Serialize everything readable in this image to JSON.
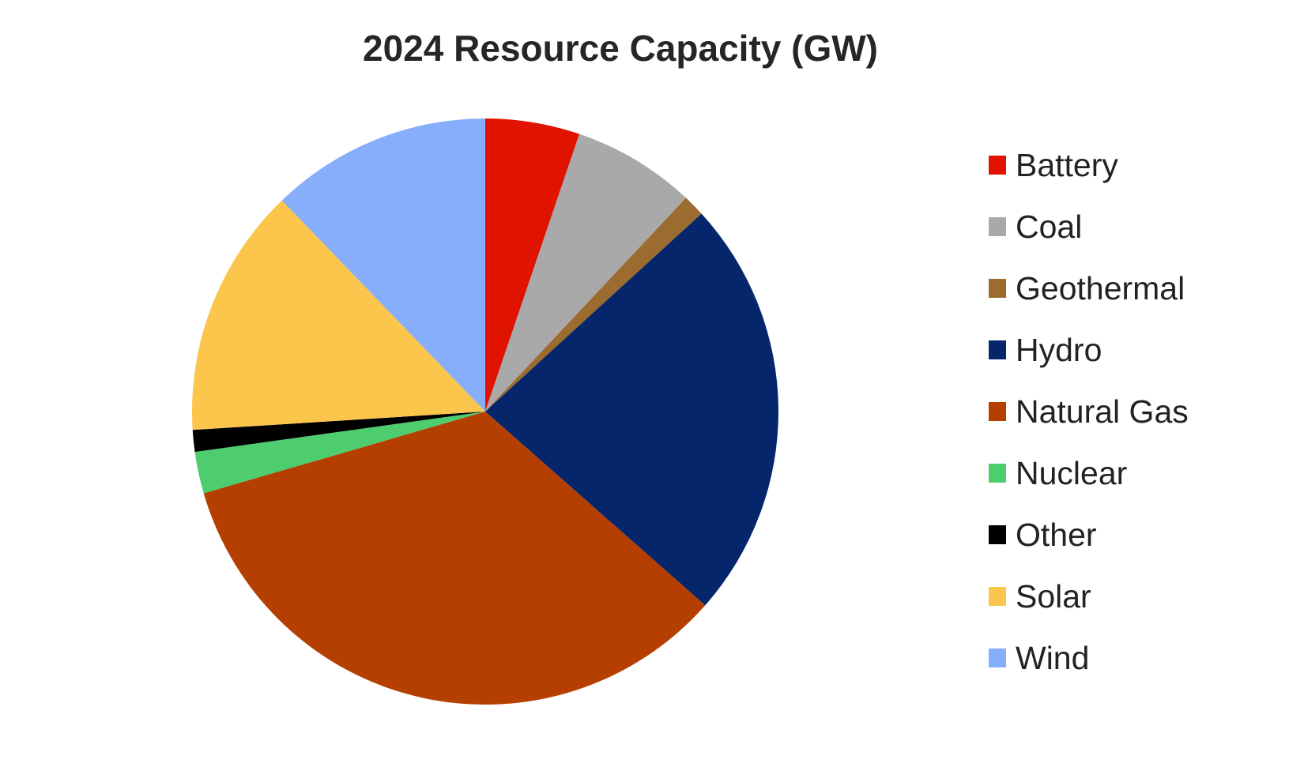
{
  "chart_data": {
    "type": "pie",
    "title": "2024 Resource Capacity (GW)",
    "legend_position": "right",
    "start_angle_deg": 0,
    "direction": "clockwise",
    "categories": [
      "Battery",
      "Coal",
      "Geothermal",
      "Hydro",
      "Natural Gas",
      "Nuclear",
      "Other",
      "Solar",
      "Wind"
    ],
    "values_percent": [
      5.2,
      6.8,
      1.2,
      23.3,
      34.0,
      2.3,
      1.2,
      13.8,
      12.2
    ],
    "colors": [
      "#e01300",
      "#a9a9a9",
      "#9c6b30",
      "#05266b",
      "#b53f00",
      "#4dcd6e",
      "#000000",
      "#fcc64c",
      "#86aefa"
    ]
  },
  "legend": {
    "items": [
      {
        "label": "Battery",
        "color": "#e01300"
      },
      {
        "label": "Coal",
        "color": "#a9a9a9"
      },
      {
        "label": "Geothermal",
        "color": "#9c6b30"
      },
      {
        "label": "Hydro",
        "color": "#05266b"
      },
      {
        "label": "Natural Gas",
        "color": "#b53f00"
      },
      {
        "label": "Nuclear",
        "color": "#4dcd6e"
      },
      {
        "label": "Other",
        "color": "#000000"
      },
      {
        "label": "Solar",
        "color": "#fcc64c"
      },
      {
        "label": "Wind",
        "color": "#86aefa"
      }
    ]
  }
}
